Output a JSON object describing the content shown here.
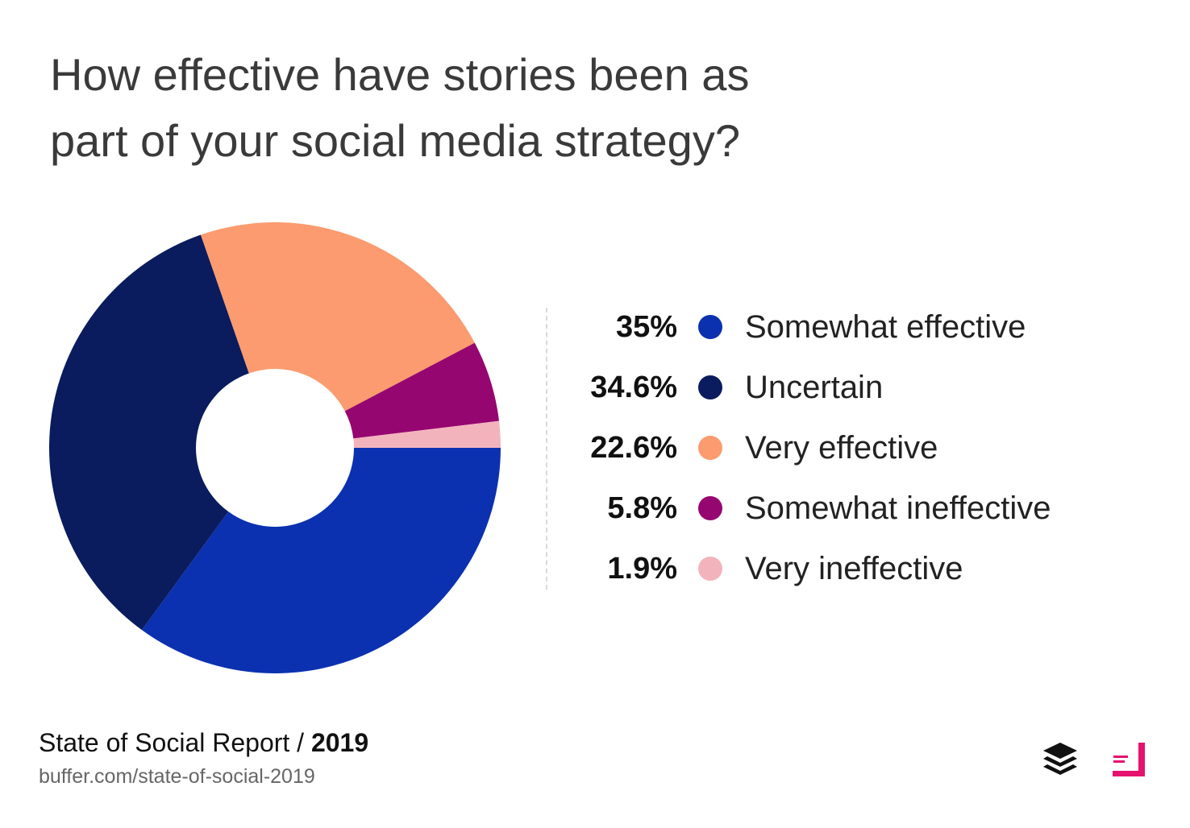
{
  "title_lines": [
    "How effective have stories been as",
    "part of your social media strategy?"
  ],
  "chart_data": {
    "type": "pie",
    "donut": true,
    "title": "How effective have stories been as part of your social media strategy?",
    "legend_position": "right",
    "slices": [
      {
        "label": "Somewhat effective",
        "value": 35,
        "display": "35%",
        "color": "#0b31b0"
      },
      {
        "label": "Uncertain",
        "value": 34.6,
        "display": "34.6%",
        "color": "#0a1c5e"
      },
      {
        "label": "Very effective",
        "value": 22.6,
        "display": "22.6%",
        "color": "#fb9b6f"
      },
      {
        "label": "Somewhat ineffective",
        "value": 5.8,
        "display": "5.8%",
        "color": "#960670"
      },
      {
        "label": "Very ineffective",
        "value": 1.9,
        "display": "1.9%",
        "color": "#f3b3bd"
      }
    ]
  },
  "footer": {
    "title_prefix": "State of Social Report / ",
    "title_year": "2019",
    "url": "buffer.com/state-of-social-2019"
  },
  "logos": {
    "buffer": "buffer-logo-icon",
    "report": "state-of-social-logo-icon",
    "report_accent": "#e5126f"
  }
}
